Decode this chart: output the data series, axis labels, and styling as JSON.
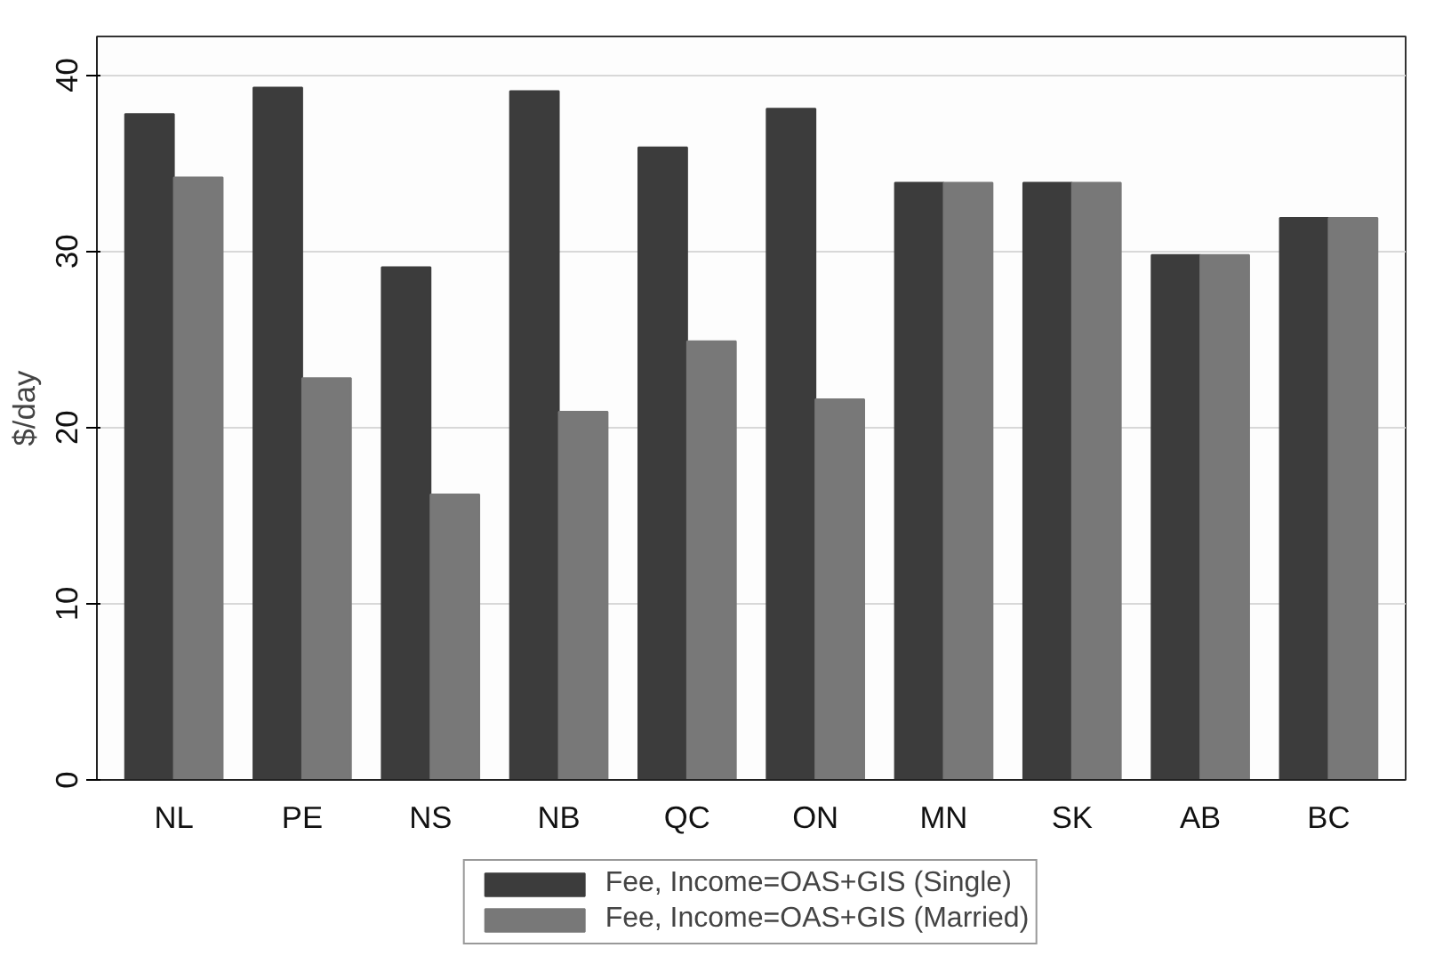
{
  "chart_data": {
    "type": "bar",
    "ylabel": "$/day",
    "categories": [
      "NL",
      "PE",
      "NS",
      "NB",
      "QC",
      "ON",
      "MN",
      "SK",
      "AB",
      "BC"
    ],
    "series": [
      {
        "name": "Fee, Income=OAS+GIS (Single)",
        "color": "#3c3c3c",
        "values": [
          37.8,
          39.3,
          29.1,
          39.1,
          35.9,
          38.1,
          33.9,
          33.9,
          29.8,
          31.9
        ]
      },
      {
        "name": "Fee, Income=OAS+GIS (Married)",
        "color": "#787878",
        "values": [
          34.2,
          22.8,
          16.2,
          20.9,
          24.9,
          21.6,
          33.9,
          33.9,
          29.8,
          31.9
        ]
      }
    ],
    "ylim": [
      0,
      42.2
    ],
    "yticks": [
      0,
      10,
      20,
      30,
      40
    ],
    "grid": "y",
    "legend": "bottom"
  }
}
